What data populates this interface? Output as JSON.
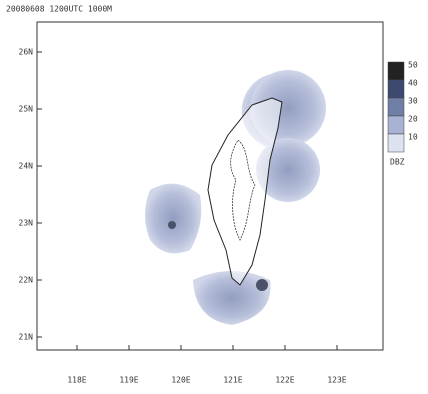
{
  "map": {
    "title": "20080608 1200UTC 1000M",
    "yticks": [
      "26N",
      "25N",
      "24N",
      "23N",
      "22N",
      "21N"
    ],
    "xticks": [
      "118E",
      "119E",
      "120E",
      "121E",
      "122E",
      "123E"
    ],
    "colorbar": {
      "levels": [
        50,
        40,
        30,
        20,
        10
      ],
      "colors": [
        "#222222",
        "#3b4a6e",
        "#6f7fa6",
        "#a8b2d2",
        "#dde2f0"
      ],
      "unit": "DBZ"
    }
  }
}
